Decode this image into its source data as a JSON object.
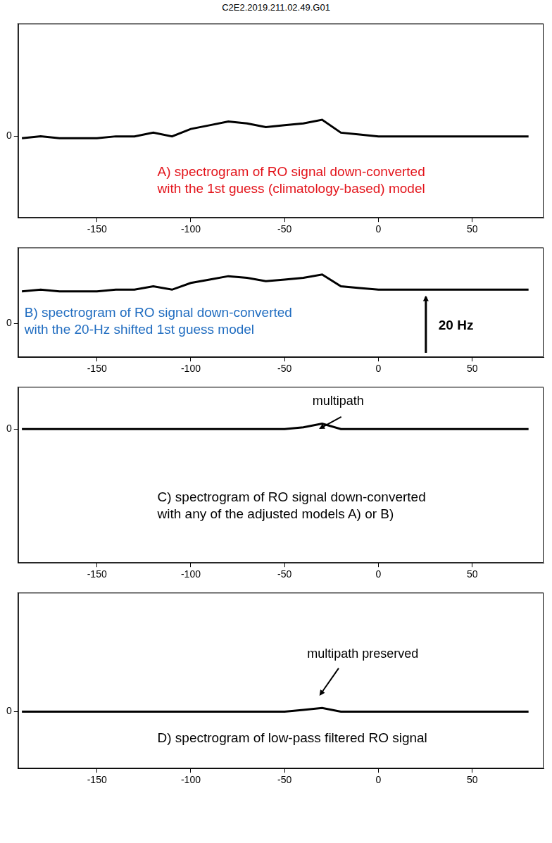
{
  "title": "C2E2.2019.211.02.49.G01",
  "chart_data": [
    {
      "type": "line",
      "annotations": [
        [
          "A) spectrogram of RO signal down-converted",
          "with the 1st guess (climatology-based) model"
        ]
      ],
      "x": [
        -190,
        -180,
        -170,
        -160,
        -150,
        -140,
        -130,
        -120,
        -110,
        -100,
        -90,
        -80,
        -70,
        -60,
        -50,
        -40,
        -30,
        -20,
        -10,
        0,
        10,
        20,
        30,
        40,
        50,
        60,
        70,
        80
      ],
      "values": [
        -1,
        0,
        -1,
        -1,
        -1,
        0,
        0,
        2,
        0,
        4,
        6,
        8,
        7,
        5,
        6,
        7,
        9,
        2,
        1,
        0,
        0,
        0,
        0,
        0,
        0,
        0,
        0,
        0
      ],
      "color": "#000000",
      "xlim": [
        -192,
        88
      ],
      "xticks": [
        -150,
        -100,
        -50,
        0,
        50
      ],
      "ylim": [
        -44,
        61
      ],
      "yticks": [
        0
      ],
      "grid": false
    },
    {
      "type": "line",
      "annotations": [
        [
          "B) spectrogram of RO signal down-converted",
          "with the 20-Hz shifted 1st guess  model"
        ],
        [
          "20 Hz"
        ]
      ],
      "x": [
        -190,
        -180,
        -170,
        -160,
        -150,
        -140,
        -130,
        -120,
        -110,
        -100,
        -90,
        -80,
        -70,
        -60,
        -50,
        -40,
        -30,
        -20,
        -10,
        0,
        10,
        20,
        30,
        40,
        50,
        60,
        70,
        80
      ],
      "values": [
        19,
        20,
        19,
        19,
        19,
        20,
        20,
        22,
        20,
        24,
        26,
        28,
        27,
        25,
        26,
        27,
        29,
        22,
        21,
        20,
        20,
        20,
        20,
        20,
        20,
        20,
        20,
        20
      ],
      "color": "#000000",
      "xlim": [
        -192,
        88
      ],
      "xticks": [
        -150,
        -100,
        -50,
        0,
        50
      ],
      "ylim": [
        -20,
        45
      ],
      "yticks": [
        0
      ],
      "grid": false
    },
    {
      "type": "line",
      "annotations": [
        [
          "C) spectrogram of RO signal down-converted",
          "with any of the adjusted models A) or B)"
        ],
        [
          "multipath"
        ]
      ],
      "x": [
        -190,
        -180,
        -170,
        -160,
        -150,
        -140,
        -130,
        -120,
        -110,
        -100,
        -90,
        -80,
        -70,
        -60,
        -50,
        -40,
        -30,
        -20,
        -10,
        0,
        10,
        20,
        30,
        40,
        50,
        60,
        70,
        80
      ],
      "values": [
        0,
        0,
        0,
        0,
        0,
        0,
        0,
        0,
        0,
        0,
        0,
        0,
        0,
        0,
        0,
        1,
        3,
        0,
        0,
        0,
        0,
        0,
        0,
        0,
        0,
        0,
        0,
        0
      ],
      "color": "#000000",
      "xlim": [
        -192,
        88
      ],
      "xticks": [
        -150,
        -100,
        -50,
        0,
        50
      ],
      "ylim": [
        -73,
        23
      ],
      "yticks": [
        0
      ],
      "grid": false
    },
    {
      "type": "line",
      "annotations": [
        [
          "D) spectrogram of low-pass filtered RO signal"
        ],
        [
          "multipath preserved"
        ]
      ],
      "x": [
        -190,
        -180,
        -170,
        -160,
        -150,
        -140,
        -130,
        -120,
        -110,
        -100,
        -90,
        -80,
        -70,
        -60,
        -50,
        -40,
        -30,
        -20,
        -10,
        0,
        10,
        20,
        30,
        40,
        50,
        60,
        70,
        80
      ],
      "values": [
        0,
        0,
        0,
        0,
        0,
        0,
        0,
        0,
        0,
        0,
        0,
        0,
        0,
        0,
        0,
        1,
        2,
        0,
        0,
        0,
        0,
        0,
        0,
        0,
        0,
        0,
        0,
        0
      ],
      "color": "#000000",
      "xlim": [
        -192,
        88
      ],
      "xticks": [
        -150,
        -100,
        -50,
        0,
        50
      ],
      "ylim": [
        -31,
        65
      ],
      "yticks": [
        0
      ],
      "grid": false
    }
  ]
}
